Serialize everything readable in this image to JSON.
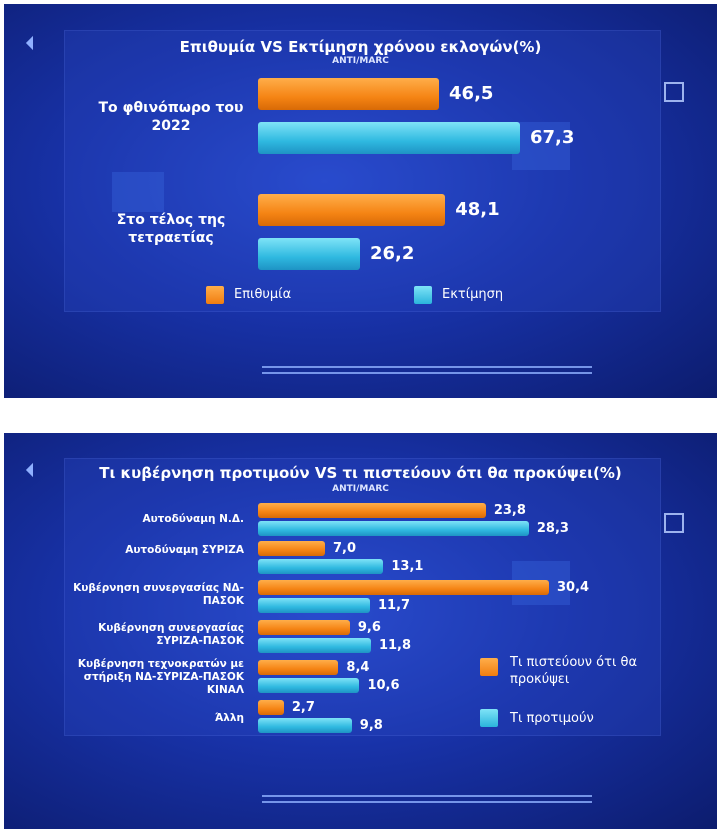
{
  "chart_data": [
    {
      "type": "bar",
      "orientation": "horizontal",
      "title": "Επιθυμία VS Εκτίμηση χρόνου εκλογών(%)",
      "source": "ANTI/MARC",
      "categories": [
        "Το φθινόπωρο του 2022",
        "Στο τέλος της τετραετίας"
      ],
      "series": [
        {
          "name": "Επιθυμία",
          "values": [
            46.5,
            48.1
          ],
          "labels": [
            "46,5",
            "48,1"
          ],
          "color": "#f58414"
        },
        {
          "name": "Εκτίμηση",
          "values": [
            67.3,
            26.2
          ],
          "labels": [
            "67,3",
            "26,2"
          ],
          "color": "#2fb9e0"
        }
      ],
      "legend_placement": "bottom",
      "grid": false
    },
    {
      "type": "bar",
      "orientation": "horizontal",
      "title": "Τι κυβέρνηση προτιμούν VS τι πιστεύουν ότι θα προκύψει(%)",
      "source": "ANTI/MARC",
      "categories": [
        "Αυτοδύναμη Ν.Δ.",
        "Αυτοδύναμη ΣΥΡΙΖΑ",
        "Κυβέρνηση συνεργασίας ΝΔ-ΠΑΣΟΚ",
        "Κυβέρνηση συνεργασίας ΣΥΡΙΖΑ-ΠΑΣΟΚ",
        "Κυβέρνηση τεχνοκρατών με στήριξη ΝΔ-ΣΥΡΙΖΑ-ΠΑΣΟΚ ΚΙΝΑΛ",
        "Άλλη"
      ],
      "series": [
        {
          "name": "Τι πιστεύουν ότι θα προκύψει",
          "values": [
            23.8,
            7.0,
            30.4,
            9.6,
            8.4,
            2.7
          ],
          "labels": [
            "23,8",
            "7,0",
            "30,4",
            "9,6",
            "8,4",
            "2,7"
          ],
          "color": "#f58414"
        },
        {
          "name": "Τι προτιμούν",
          "values": [
            28.3,
            13.1,
            11.7,
            11.8,
            10.6,
            9.8
          ],
          "labels": [
            "28,3",
            "13,1",
            "11,7",
            "11,8",
            "10,6",
            "9,8"
          ],
          "color": "#2fb9e0"
        }
      ],
      "legend_placement": "right",
      "grid": false
    }
  ]
}
